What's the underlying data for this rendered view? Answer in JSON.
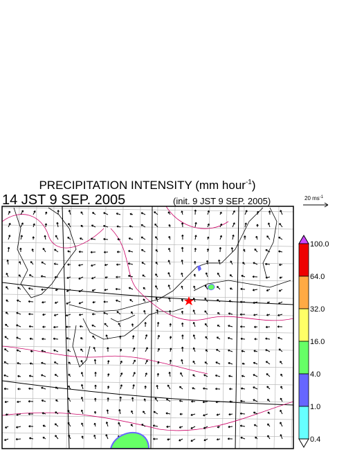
{
  "header": {
    "title": "PRECIPITATION INTENSITY (mm hour",
    "title_unit_exponent": "-1",
    "title_close": ")",
    "valid_time": "14 JST 9 SEP. 2005",
    "init_time": "(init. 9 JST 9 SEP. 2005)"
  },
  "wind_scale": {
    "label": "20 ms",
    "label_exponent": "-1"
  },
  "colorbar": {
    "levels": [
      {
        "label": "100.0",
        "color": "#ee0000"
      },
      {
        "label": "64.0",
        "color": "#ffaa44"
      },
      {
        "label": "32.0",
        "color": "#ffff66"
      },
      {
        "label": "16.0",
        "color": "#66ff66"
      },
      {
        "label": "4.0",
        "color": "#6666ff"
      },
      {
        "label": "1.0",
        "color": "#66ffff"
      },
      {
        "label": "0.4",
        "color": null
      }
    ],
    "over_color": "#cc44ff",
    "under_color": "#ffffff"
  }
}
